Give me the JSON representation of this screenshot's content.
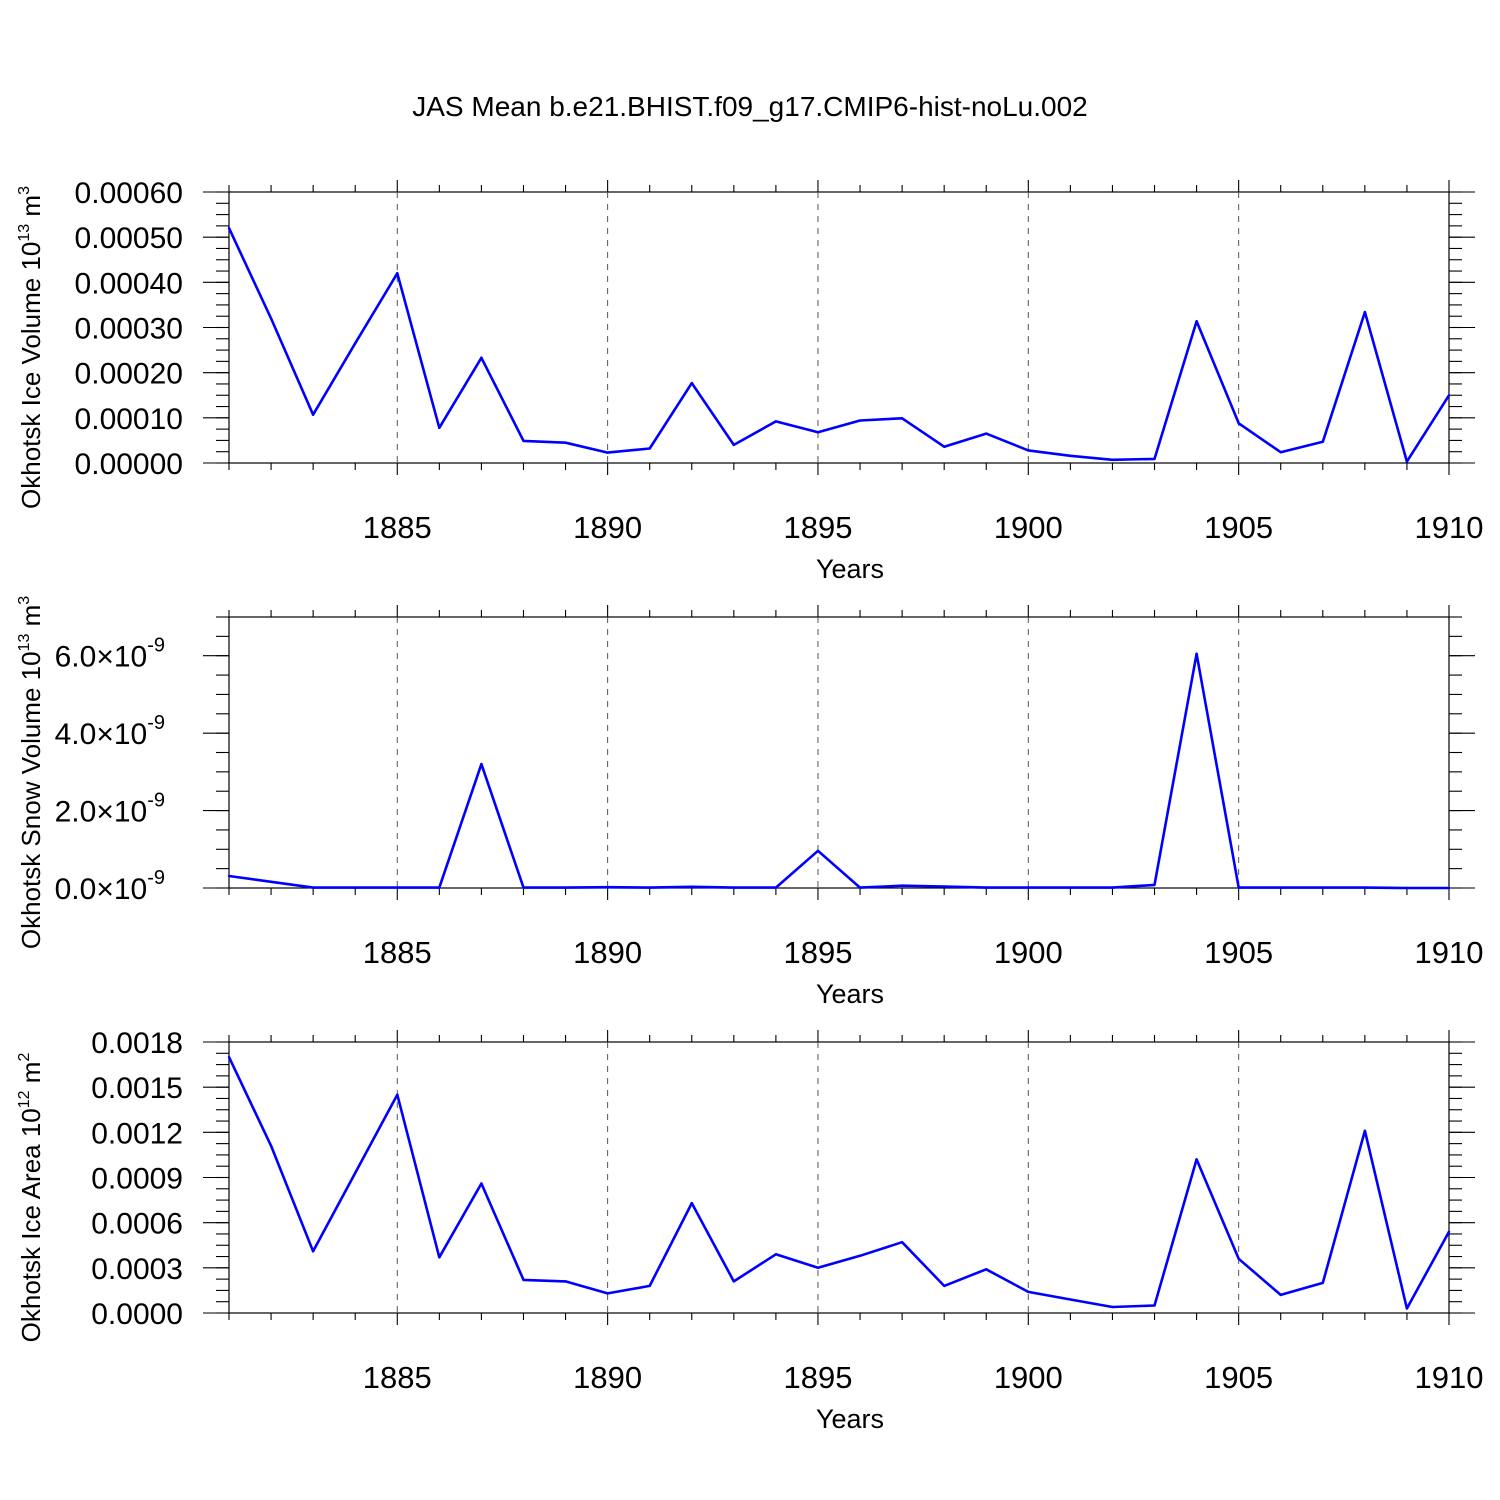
{
  "title": "JAS Mean b.e21.BHIST.f09_g17.CMIP6-hist-noLu.002",
  "chart_data": [
    {
      "type": "line",
      "title": "JAS Mean b.e21.BHIST.f09_g17.CMIP6-hist-noLu.002",
      "ylabel": "Okhotsk Ice Volume 10",
      "ylabel_exp": "13",
      "ylabel_unit": " m",
      "ylabel_unit_exp": "3",
      "xlabel": "Years",
      "xlim": [
        1881,
        1910
      ],
      "ylim": [
        0,
        0.0006
      ],
      "xticks": [
        1885,
        1890,
        1895,
        1900,
        1905,
        1910
      ],
      "yticks": [
        {
          "v": 0,
          "label": "0.00000"
        },
        {
          "v": 0.0001,
          "label": "0.00010"
        },
        {
          "v": 0.0002,
          "label": "0.00020"
        },
        {
          "v": 0.0003,
          "label": "0.00030"
        },
        {
          "v": 0.0004,
          "label": "0.00040"
        },
        {
          "v": 0.0005,
          "label": "0.00050"
        },
        {
          "v": 0.0006,
          "label": "0.00060"
        }
      ],
      "series": [
        {
          "name": "Okhotsk Ice Volume",
          "color": "#0000ff",
          "x": [
            1881,
            1882,
            1883,
            1884,
            1885,
            1886,
            1887,
            1888,
            1889,
            1890,
            1891,
            1892,
            1893,
            1894,
            1895,
            1896,
            1897,
            1898,
            1899,
            1900,
            1901,
            1902,
            1903,
            1904,
            1905,
            1906,
            1907,
            1908,
            1909,
            1910
          ],
          "values": [
            0.00052,
            0.00032,
            0.000107,
            0.000265,
            0.00042,
            7.8e-05,
            0.000233,
            4.9e-05,
            4.5e-05,
            2.3e-05,
            3.2e-05,
            0.000177,
            4e-05,
            9.2e-05,
            6.8e-05,
            9.4e-05,
            9.9e-05,
            3.6e-05,
            6.5e-05,
            2.8e-05,
            1.6e-05,
            7e-06,
            9e-06,
            0.000314,
            8.8e-05,
            2.4e-05,
            4.7e-05,
            0.000334,
            3e-06,
            0.00015
          ]
        }
      ]
    },
    {
      "type": "line",
      "ylabel": "Okhotsk Snow Volume 10",
      "ylabel_exp": "13",
      "ylabel_unit": " m",
      "ylabel_unit_exp": "3",
      "xlabel": "Years",
      "xlim": [
        1881,
        1910
      ],
      "ylim": [
        0,
        7e-09
      ],
      "xticks": [
        1885,
        1890,
        1895,
        1900,
        1905,
        1910
      ],
      "yticks": [
        {
          "v": 0,
          "label": "0.0×10",
          "exp": "-9"
        },
        {
          "v": 2e-09,
          "label": "2.0×10",
          "exp": "-9"
        },
        {
          "v": 4e-09,
          "label": "4.0×10",
          "exp": "-9"
        },
        {
          "v": 6e-09,
          "label": "6.0×10",
          "exp": "-9"
        }
      ],
      "series": [
        {
          "name": "Okhotsk Snow Volume",
          "color": "#0000ff",
          "x": [
            1881,
            1882,
            1883,
            1884,
            1885,
            1886,
            1887,
            1888,
            1889,
            1890,
            1891,
            1892,
            1893,
            1894,
            1895,
            1896,
            1897,
            1898,
            1899,
            1900,
            1901,
            1902,
            1903,
            1904,
            1905,
            1906,
            1907,
            1908,
            1909,
            1910
          ],
          "values": [
            3.1e-10,
            1.6e-10,
            1e-11,
            1e-11,
            1e-11,
            1e-11,
            3.2e-09,
            1e-11,
            1e-11,
            2e-11,
            1e-11,
            3e-11,
            1e-11,
            1e-11,
            9.6e-10,
            1e-11,
            6e-11,
            4e-11,
            1e-11,
            1e-11,
            1e-11,
            1e-11,
            8e-11,
            6.05e-09,
            1e-11,
            1e-11,
            1e-11,
            1e-11,
            0,
            0
          ]
        }
      ]
    },
    {
      "type": "line",
      "ylabel": "Okhotsk Ice Area 10",
      "ylabel_exp": "12",
      "ylabel_unit": " m",
      "ylabel_unit_exp": "2",
      "xlabel": "Years",
      "xlim": [
        1881,
        1910
      ],
      "ylim": [
        0,
        0.0018
      ],
      "xticks": [
        1885,
        1890,
        1895,
        1900,
        1905,
        1910
      ],
      "yticks": [
        {
          "v": 0,
          "label": "0.0000"
        },
        {
          "v": 0.0003,
          "label": "0.0003"
        },
        {
          "v": 0.0006,
          "label": "0.0006"
        },
        {
          "v": 0.0009,
          "label": "0.0009"
        },
        {
          "v": 0.0012,
          "label": "0.0012"
        },
        {
          "v": 0.0015,
          "label": "0.0015"
        },
        {
          "v": 0.0018,
          "label": "0.0018"
        }
      ],
      "series": [
        {
          "name": "Okhotsk Ice Area",
          "color": "#0000ff",
          "x": [
            1881,
            1882,
            1883,
            1884,
            1885,
            1886,
            1887,
            1888,
            1889,
            1890,
            1891,
            1892,
            1893,
            1894,
            1895,
            1896,
            1897,
            1898,
            1899,
            1900,
            1901,
            1902,
            1903,
            1904,
            1905,
            1906,
            1907,
            1908,
            1909,
            1910
          ],
          "values": [
            0.0017,
            0.00111,
            0.00041,
            0.00093,
            0.00145,
            0.00037,
            0.00086,
            0.00022,
            0.00021,
            0.00013,
            0.00018,
            0.00073,
            0.00021,
            0.00039,
            0.0003,
            0.00038,
            0.00047,
            0.00018,
            0.00029,
            0.00014,
            9e-05,
            4e-05,
            5e-05,
            0.00102,
            0.00036,
            0.00012,
            0.0002,
            0.00121,
            3e-05,
            0.00054
          ]
        }
      ]
    }
  ]
}
